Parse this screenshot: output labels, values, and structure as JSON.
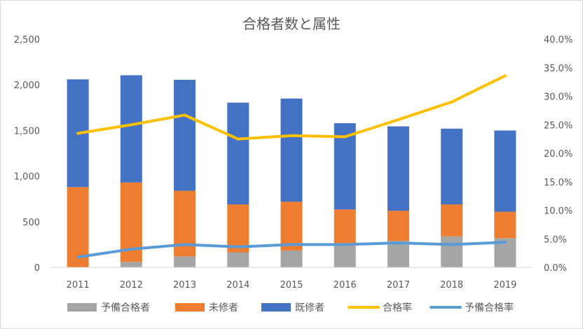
{
  "chart_data": {
    "type": "bar",
    "title": "合格者数と属性",
    "categories": [
      "2011",
      "2012",
      "2013",
      "2014",
      "2015",
      "2016",
      "2017",
      "2018",
      "2019"
    ],
    "stacked": true,
    "series": [
      {
        "name": "予備合格者",
        "type": "bar",
        "axis": "left",
        "color": "#a5a5a5",
        "values": [
          0,
          60,
          120,
          165,
          185,
          235,
          290,
          340,
          320
        ]
      },
      {
        "name": "未修者",
        "type": "bar",
        "axis": "left",
        "color": "#ed7d31",
        "values": [
          880,
          870,
          720,
          525,
          535,
          400,
          330,
          350,
          290
        ]
      },
      {
        "name": "既修者",
        "type": "bar",
        "axis": "left",
        "color": "#4472c4",
        "values": [
          1180,
          1175,
          1215,
          1115,
          1130,
          945,
          925,
          830,
          890
        ]
      },
      {
        "name": "合格率",
        "type": "line",
        "axis": "right",
        "color": "#ffc000",
        "values": [
          23.5,
          25.0,
          26.7,
          22.5,
          23.1,
          22.9,
          25.9,
          29.0,
          33.6
        ]
      },
      {
        "name": "予備合格率",
        "type": "line",
        "axis": "right",
        "color": "#5b9bd5",
        "values": [
          1.8,
          3.2,
          4.0,
          3.6,
          4.0,
          4.0,
          4.3,
          4.0,
          4.4
        ]
      }
    ],
    "y_left": {
      "min": 0,
      "max": 2500,
      "ticks": [
        "0",
        "500",
        "1,000",
        "1,500",
        "2,000",
        "2,500"
      ]
    },
    "y_right": {
      "min": 0,
      "max": 40,
      "ticks": [
        "0.0%",
        "5.0%",
        "10.0%",
        "15.0%",
        "20.0%",
        "25.0%",
        "30.0%",
        "35.0%",
        "40.0%"
      ]
    },
    "grid": false,
    "legend_position": "bottom"
  }
}
